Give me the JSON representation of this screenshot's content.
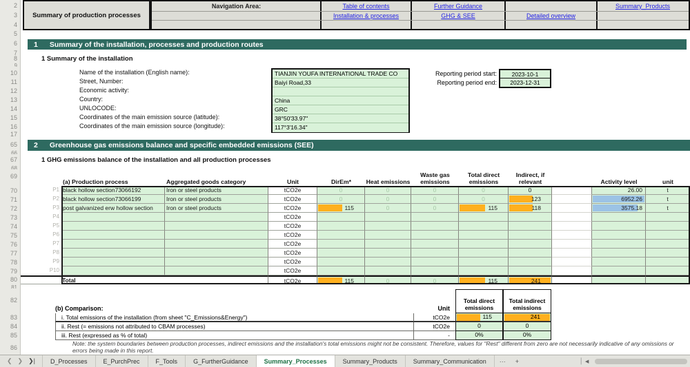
{
  "header": {
    "title_box": "Summary of production processes",
    "nav_label": "Navigation Area:",
    "links": {
      "toc": "Table of contents",
      "further": "Further Guidance",
      "summary_products": "Summary_Products",
      "installation": "Installation & processes",
      "ghg": "GHG & SEE",
      "detailed": "Detailed overview"
    }
  },
  "gutter": [
    "2",
    "3",
    "4",
    "5",
    "6",
    "7",
    "8",
    "9",
    "10",
    "11",
    "12",
    "13",
    "14",
    "15",
    "16",
    "17",
    "65",
    "66",
    "67",
    "68",
    "69",
    "70",
    "71",
    "72",
    "73",
    "74",
    "75",
    "76",
    "77",
    "78",
    "79",
    "80",
    "81",
    "82",
    "83",
    "84",
    "85",
    "86"
  ],
  "section1": {
    "number": "1",
    "title": "Summary of the installation, processes and production routes",
    "subsection": "1 Summary of the installation",
    "fields": [
      {
        "label": "Name of the installation (English name):",
        "value": "TIANJIN YOUFA INTERNATIONAL TRADE CO"
      },
      {
        "label": "Street, Number:",
        "value": "Baiyi Road,33"
      },
      {
        "label": "Economic activity:",
        "value": ""
      },
      {
        "label": "Country:",
        "value": "China"
      },
      {
        "label": "UNLOCODE:",
        "value": "GRC"
      },
      {
        "label": "Coordinates of the main emission source (latitude):",
        "value": "38°50'33.97\""
      },
      {
        "label": "Coordinates of the main emission source (longitude):",
        "value": "117°3'16.34\""
      }
    ],
    "reporting_start": {
      "label": "Reporting period start:",
      "value": "2023-10-1"
    },
    "reporting_end": {
      "label": "Reporting period end:",
      "value": "2023-12-31"
    }
  },
  "section2": {
    "number": "2",
    "title": "Greenhouse gas emissions balance and specific embedded emissions (SEE)",
    "subsection": "1 GHG emissions balance of the installation and all production processes",
    "table_a": {
      "headers": {
        "process": "(a) Production process",
        "category": "Aggregated goods category",
        "unit": "Unit",
        "direm": "DirEm*",
        "heat": "Heat emissions",
        "waste": "Waste gas emissions",
        "total_direct": "Total direct emissions",
        "indirect": "Indirect, if relevant",
        "activity": "Activity level",
        "act_unit": "unit"
      },
      "rows": [
        {
          "p": "P1",
          "process": "black hollow section73066192",
          "category": "Iron or steel products",
          "unit": "tCO2e",
          "direm": {
            "v": "0",
            "faint": true
          },
          "heat": {
            "v": "0",
            "faint": true
          },
          "waste": {
            "v": "0",
            "faint": true
          },
          "total_direct": {
            "v": "0",
            "faint": true
          },
          "indirect": {
            "v": "0"
          },
          "activity": {
            "v": "26.00"
          },
          "act_unit": "t"
        },
        {
          "p": "P2",
          "process": "black hollow section73066199",
          "category": "Iron or steel products",
          "unit": "tCO2e",
          "direm": {
            "v": "0",
            "faint": true
          },
          "heat": {
            "v": "0",
            "faint": true
          },
          "waste": {
            "v": "0",
            "faint": true
          },
          "total_direct": {
            "v": "0",
            "faint": true
          },
          "indirect": {
            "v": "123",
            "bar": 55
          },
          "activity": {
            "v": "6952.26",
            "bar": 97
          },
          "act_unit": "t"
        },
        {
          "p": "P3",
          "process": "post galvanized erw hollow section",
          "category": "Iron or steel products",
          "unit": "tCO2e",
          "direm": {
            "v": "115",
            "bar": 52
          },
          "heat": {
            "v": "0",
            "faint": true
          },
          "waste": {
            "v": "0",
            "faint": true
          },
          "total_direct": {
            "v": "115",
            "bar": 52
          },
          "indirect": {
            "v": "118",
            "bar": 55
          },
          "activity": {
            "v": "3575.18",
            "bar": 85
          },
          "act_unit": "t"
        },
        {
          "p": "P4",
          "process": "",
          "category": "",
          "unit": "tCO2e",
          "direm": {
            "v": ""
          },
          "heat": {
            "v": ""
          },
          "waste": {
            "v": ""
          },
          "total_direct": {
            "v": ""
          },
          "indirect": {
            "v": ""
          },
          "activity": {
            "v": ""
          },
          "act_unit": ""
        },
        {
          "p": "P5",
          "process": "",
          "category": "",
          "unit": "tCO2e",
          "direm": {
            "v": ""
          },
          "heat": {
            "v": ""
          },
          "waste": {
            "v": ""
          },
          "total_direct": {
            "v": ""
          },
          "indirect": {
            "v": ""
          },
          "activity": {
            "v": ""
          },
          "act_unit": ""
        },
        {
          "p": "P6",
          "process": "",
          "category": "",
          "unit": "tCO2e",
          "direm": {
            "v": ""
          },
          "heat": {
            "v": ""
          },
          "waste": {
            "v": ""
          },
          "total_direct": {
            "v": ""
          },
          "indirect": {
            "v": ""
          },
          "activity": {
            "v": ""
          },
          "act_unit": ""
        },
        {
          "p": "P7",
          "process": "",
          "category": "",
          "unit": "tCO2e",
          "direm": {
            "v": ""
          },
          "heat": {
            "v": ""
          },
          "waste": {
            "v": ""
          },
          "total_direct": {
            "v": ""
          },
          "indirect": {
            "v": ""
          },
          "activity": {
            "v": ""
          },
          "act_unit": ""
        },
        {
          "p": "P8",
          "process": "",
          "category": "",
          "unit": "tCO2e",
          "direm": {
            "v": ""
          },
          "heat": {
            "v": ""
          },
          "waste": {
            "v": ""
          },
          "total_direct": {
            "v": ""
          },
          "indirect": {
            "v": ""
          },
          "activity": {
            "v": ""
          },
          "act_unit": ""
        },
        {
          "p": "P9",
          "process": "",
          "category": "",
          "unit": "tCO2e",
          "direm": {
            "v": ""
          },
          "heat": {
            "v": ""
          },
          "waste": {
            "v": ""
          },
          "total_direct": {
            "v": ""
          },
          "indirect": {
            "v": ""
          },
          "activity": {
            "v": ""
          },
          "act_unit": ""
        },
        {
          "p": "P10",
          "process": "",
          "category": "",
          "unit": "tCO2e",
          "direm": {
            "v": ""
          },
          "heat": {
            "v": ""
          },
          "waste": {
            "v": ""
          },
          "total_direct": {
            "v": ""
          },
          "indirect": {
            "v": ""
          },
          "activity": {
            "v": ""
          },
          "act_unit": ""
        }
      ],
      "total": {
        "label": "Total",
        "unit": "tCO2e",
        "direm": {
          "v": "115",
          "bar": 52
        },
        "heat": {
          "v": "0",
          "faint": true
        },
        "waste": {
          "v": "0",
          "faint": true
        },
        "total_direct": {
          "v": "115",
          "bar": 52
        },
        "indirect": {
          "v": "241",
          "bar": 97
        }
      }
    },
    "table_b": {
      "title": "(b) Comparison:",
      "unit_header": "Unit",
      "col1_header": "Total direct emissions",
      "col2_header": "Total indirect emissions",
      "rows": [
        {
          "label": "i. Total emissions of the installation (from sheet \"C_Emissions&Energy\")",
          "unit": "tCO2e",
          "direct": {
            "v": "115",
            "bar": 50
          },
          "indirect": {
            "v": "241",
            "bar": 97
          }
        },
        {
          "label": "ii. Rest (= emissions not attributed to CBAM processes)",
          "unit": "tCO2e",
          "direct": {
            "v": "0"
          },
          "indirect": {
            "v": "0"
          }
        },
        {
          "label": "iii. Rest (expressed as % of total)",
          "unit": "-",
          "direct": {
            "v": "0%"
          },
          "indirect": {
            "v": "0%"
          }
        }
      ],
      "note": "Note: the system boundaries between production processes, indirect emissions and the installation's total emissions might not be consistent. Therefore, values for \"Rest\" different from zero are not necessarily indicative of any omissions or errors being made in this report."
    }
  },
  "tabbar": {
    "tabs": [
      {
        "label": "D_Processes"
      },
      {
        "label": "E_PurchPrec"
      },
      {
        "label": "F_Tools"
      },
      {
        "label": "G_FurtherGuidance"
      },
      {
        "label": "Summary_Processes",
        "active": true
      },
      {
        "label": "Summary_Products"
      },
      {
        "label": "Summary_Communication"
      }
    ],
    "overflow": "···",
    "add": "+"
  },
  "colors": {
    "section_teal": "#2E6A60",
    "cell_green": "#D9F2D9",
    "bar_orange": "#FFB01E",
    "bar_blue": "#9CC3E5",
    "link_blue": "#2323E6",
    "active_tab_green": "#1E7145"
  }
}
